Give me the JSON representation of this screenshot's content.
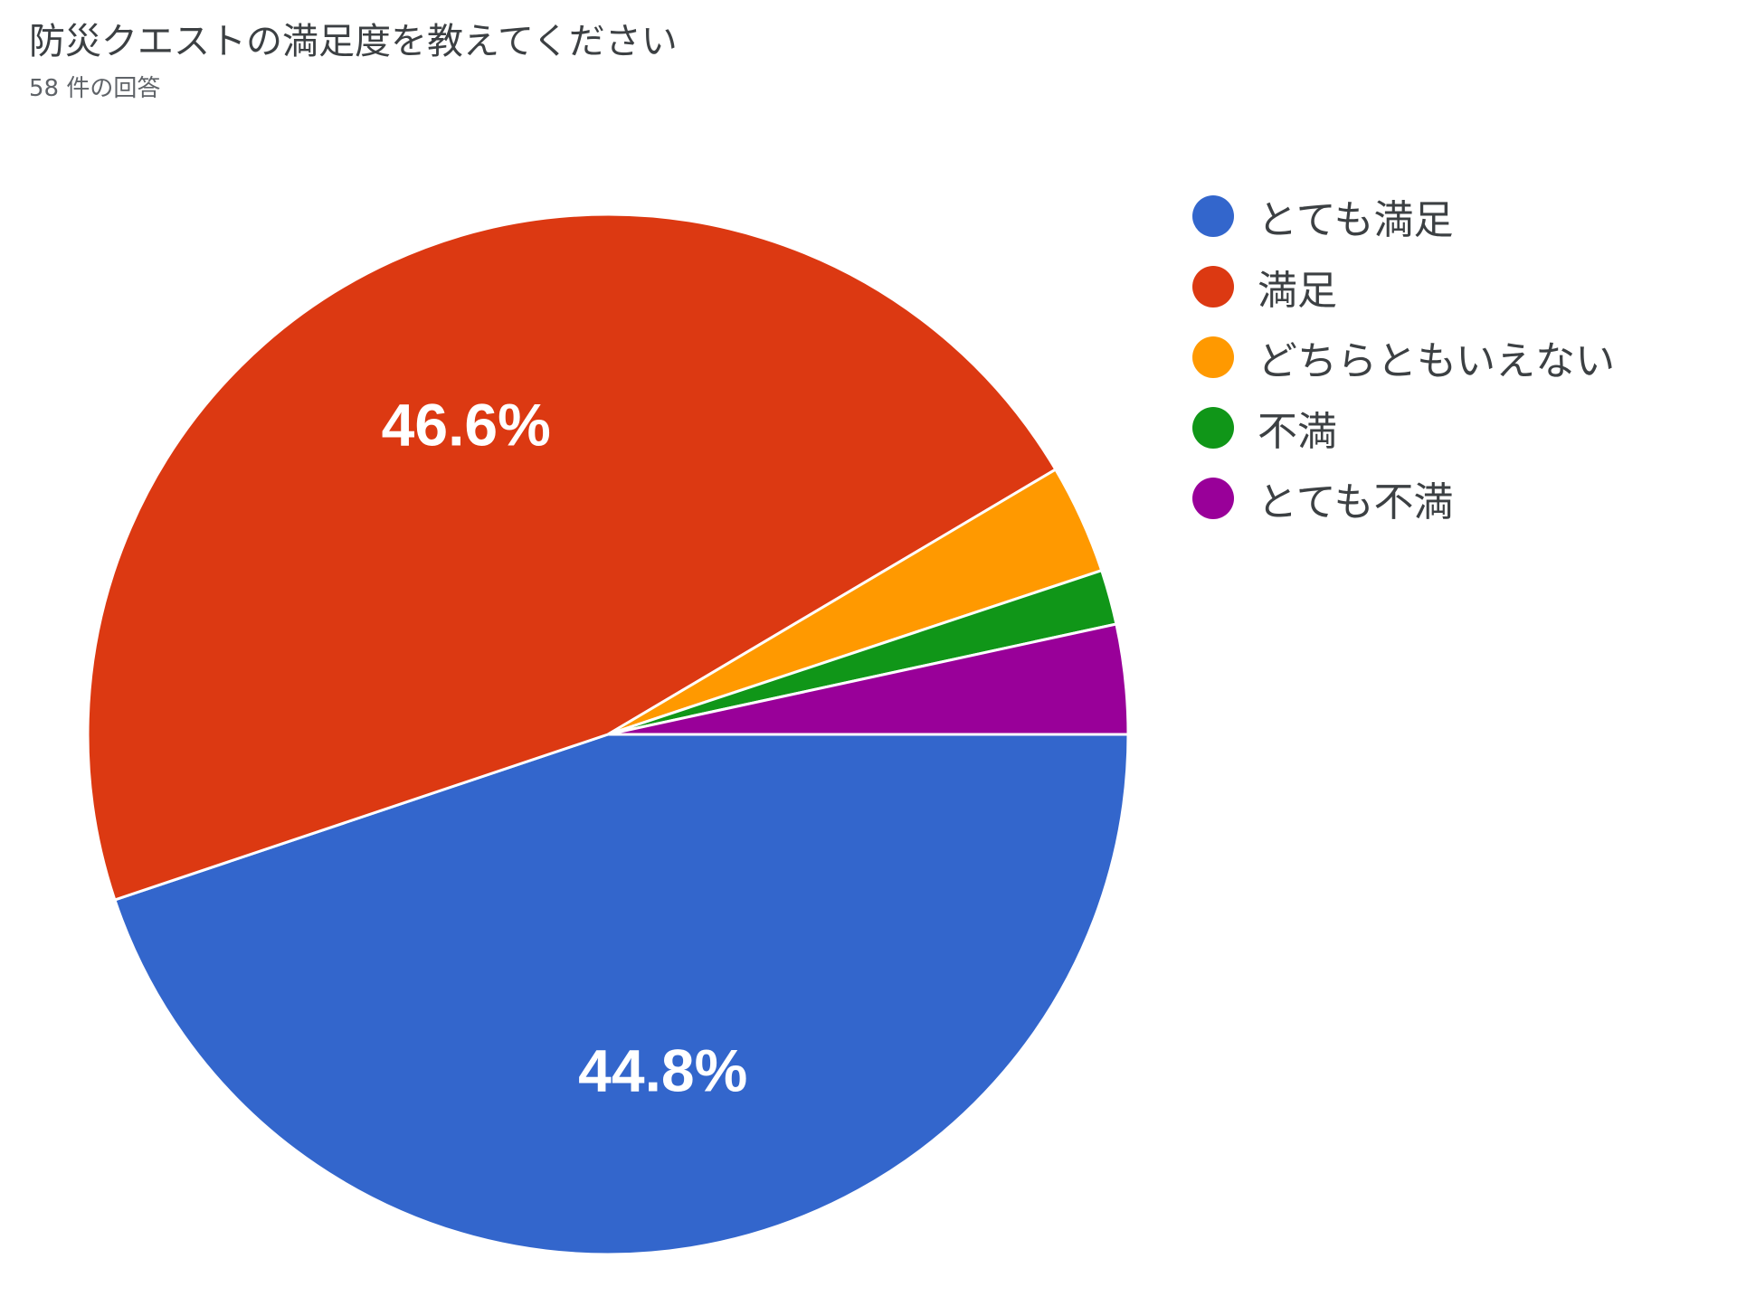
{
  "header": {
    "title": "防災クエストの満足度を教えてください",
    "subtitle": "58 件の回答"
  },
  "chart_data": {
    "type": "pie",
    "title": "防災クエストの満足度を教えてください",
    "subtitle": "58 件の回答",
    "legend_position": "right",
    "slices": [
      {
        "label": "とても満足",
        "value": 44.8,
        "color": "#3366cc",
        "show_label": true,
        "display": "44.8%"
      },
      {
        "label": "満足",
        "value": 46.6,
        "color": "#dc3912",
        "show_label": true,
        "display": "46.6%"
      },
      {
        "label": "どちらともいえない",
        "value": 3.4,
        "color": "#ff9900",
        "show_label": false
      },
      {
        "label": "不満",
        "value": 1.7,
        "color": "#109618",
        "show_label": false
      },
      {
        "label": "とても不満",
        "value": 3.4,
        "color": "#990099",
        "show_label": false
      }
    ]
  }
}
